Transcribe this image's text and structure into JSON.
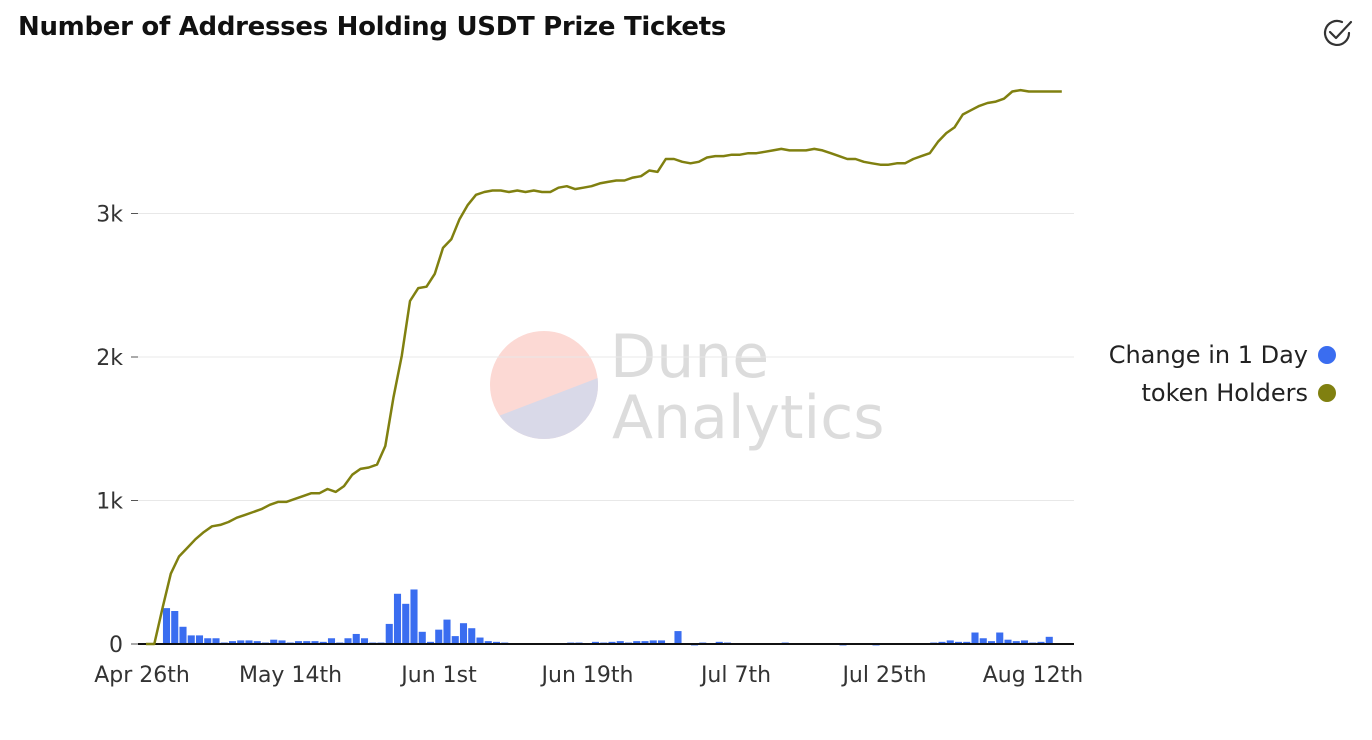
{
  "header": {
    "title": "Number of Addresses Holding USDT Prize Tickets"
  },
  "icons": {
    "status": "check-circle-icon"
  },
  "watermark": {
    "line1": "Dune",
    "line2": "Analytics"
  },
  "colors": {
    "holders": "#808010",
    "change": "#3a6df0",
    "grid": "#e8e8e8",
    "axis": "#111111"
  },
  "chart_data": {
    "type": "bar+line",
    "title": "Number of Addresses Holding USDT Prize Tickets",
    "xlabel": "",
    "ylabel": "",
    "ylim": [
      0,
      4000
    ],
    "yticks": [
      0,
      1000,
      2000,
      3000
    ],
    "ytick_labels": [
      "0",
      "1k",
      "2k",
      "3k"
    ],
    "x_start_day": 0,
    "x_end_day": 112,
    "xticks": [
      0,
      18,
      36,
      54,
      72,
      90,
      108
    ],
    "xtick_labels": [
      "Apr 26th",
      "May 14th",
      "Jun 1st",
      "Jun 19th",
      "Jul 7th",
      "Jul 25th",
      "Aug 12th"
    ],
    "legend": [
      {
        "name": "Change in 1 Day",
        "color": "#3a6df0"
      },
      {
        "name": "token Holders",
        "color": "#808010"
      }
    ],
    "series": [
      {
        "name": "Change in 1 Day",
        "type": "bar",
        "days": [
          0,
          1,
          2,
          3,
          4,
          5,
          6,
          7,
          8,
          9,
          10,
          11,
          12,
          13,
          14,
          15,
          16,
          17,
          18,
          19,
          20,
          21,
          22,
          23,
          24,
          25,
          26,
          27,
          28,
          29,
          30,
          31,
          32,
          33,
          34,
          35,
          36,
          37,
          38,
          39,
          40,
          41,
          42,
          43,
          44,
          45,
          46,
          47,
          48,
          49,
          50,
          51,
          52,
          53,
          54,
          55,
          56,
          57,
          58,
          59,
          60,
          61,
          62,
          63,
          64,
          65,
          66,
          67,
          68,
          69,
          70,
          71,
          72,
          73,
          74,
          75,
          76,
          77,
          78,
          79,
          80,
          81,
          82,
          83,
          84,
          85,
          86,
          87,
          88,
          89,
          90,
          91,
          92,
          93,
          94,
          95,
          96,
          97,
          98,
          99,
          100,
          101,
          102,
          103,
          104,
          105,
          106,
          107,
          108,
          109,
          110,
          111
        ],
        "values": [
          5,
          5,
          250,
          230,
          120,
          60,
          60,
          40,
          40,
          10,
          20,
          25,
          25,
          20,
          10,
          30,
          25,
          10,
          20,
          20,
          20,
          15,
          40,
          10,
          40,
          70,
          40,
          10,
          10,
          140,
          350,
          280,
          380,
          85,
          15,
          100,
          170,
          55,
          145,
          110,
          45,
          20,
          15,
          10,
          5,
          5,
          5,
          5,
          5,
          5,
          5,
          10,
          10,
          5,
          15,
          10,
          15,
          20,
          10,
          20,
          20,
          25,
          25,
          5,
          90,
          5,
          -10,
          10,
          5,
          15,
          10,
          5,
          5,
          5,
          5,
          5,
          5,
          10,
          5,
          5,
          5,
          5,
          5,
          -5,
          -10,
          -5,
          5,
          5,
          -10,
          5,
          5,
          5,
          5,
          5,
          5,
          10,
          15,
          25,
          15,
          15,
          80,
          40,
          20,
          80,
          30,
          20,
          25,
          10,
          15,
          50,
          5,
          5
        ]
      },
      {
        "name": "token Holders",
        "type": "line",
        "days": [
          0,
          1,
          2,
          3,
          4,
          5,
          6,
          7,
          8,
          9,
          10,
          11,
          12,
          13,
          14,
          15,
          16,
          17,
          18,
          19,
          20,
          21,
          22,
          23,
          24,
          25,
          26,
          27,
          28,
          29,
          30,
          31,
          32,
          33,
          34,
          35,
          36,
          37,
          38,
          39,
          40,
          41,
          42,
          43,
          44,
          45,
          46,
          47,
          48,
          49,
          50,
          51,
          52,
          53,
          54,
          55,
          56,
          57,
          58,
          59,
          60,
          61,
          62,
          63,
          64,
          65,
          66,
          67,
          68,
          69,
          70,
          71,
          72,
          73,
          74,
          75,
          76,
          77,
          78,
          79,
          80,
          81,
          82,
          83,
          84,
          85,
          86,
          87,
          88,
          89,
          90,
          91,
          92,
          93,
          94,
          95,
          96,
          97,
          98,
          99,
          100,
          101,
          102,
          103,
          104,
          105,
          106,
          107,
          108,
          109,
          110,
          111
        ],
        "values": [
          0,
          0,
          250,
          490,
          610,
          670,
          730,
          780,
          820,
          830,
          850,
          880,
          900,
          920,
          940,
          970,
          990,
          990,
          1010,
          1030,
          1050,
          1050,
          1080,
          1060,
          1100,
          1180,
          1220,
          1230,
          1250,
          1380,
          1720,
          2010,
          2390,
          2480,
          2490,
          2580,
          2760,
          2820,
          2960,
          3060,
          3130,
          3150,
          3160,
          3160,
          3150,
          3160,
          3150,
          3160,
          3150,
          3150,
          3180,
          3190,
          3170,
          3180,
          3190,
          3210,
          3220,
          3230,
          3230,
          3250,
          3260,
          3300,
          3290,
          3380,
          3380,
          3360,
          3350,
          3360,
          3390,
          3400,
          3400,
          3410,
          3410,
          3420,
          3420,
          3430,
          3440,
          3450,
          3440,
          3440,
          3440,
          3450,
          3440,
          3420,
          3400,
          3380,
          3380,
          3360,
          3350,
          3340,
          3340,
          3350,
          3350,
          3380,
          3400,
          3420,
          3500,
          3560,
          3600,
          3690,
          3720,
          3750,
          3770,
          3780,
          3800,
          3850,
          3860,
          3850,
          3850,
          3850,
          3850,
          3850
        ]
      }
    ]
  }
}
